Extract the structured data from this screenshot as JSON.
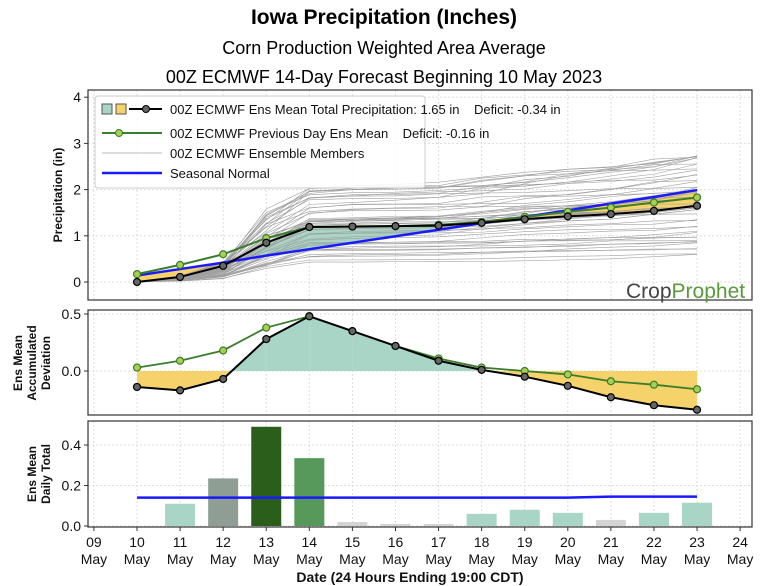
{
  "title": "Iowa Precipitation (Inches)",
  "subtitle1": "Corn Production Weighted Area Average",
  "subtitle2": "00Z ECMWF 14-Day Forecast Beginning 10 May 2023",
  "logo": {
    "part1": "Crop",
    "part2": "Prophet"
  },
  "colors": {
    "surplus": "#a8d5c5",
    "deficit": "#f5d36a",
    "mean": "#000000",
    "previous": "#3a7d2c",
    "previous_marker": "#a8cf4f",
    "members": "#a0a0a0",
    "normal": "#1a1aff"
  },
  "chart_data": [
    {
      "type": "line",
      "ylabel": "Precipitation (in)",
      "ylim": [
        -0.3,
        4
      ],
      "yticks": [
        "0",
        "1",
        "2",
        "3",
        "4"
      ],
      "grid": true,
      "legend_placement": "top-left",
      "legend": [
        "00Z ECMWF Ens Mean Total Precipitation: 1.65 in    Deficit: -0.34 in",
        "00Z ECMWF Previous Day Ens Mean    Deficit: -0.16 in",
        "00Z ECMWF Ensemble Members",
        "Seasonal Normal"
      ],
      "x": [
        10,
        11,
        12,
        13,
        14,
        15,
        16,
        17,
        18,
        19,
        20,
        21,
        22,
        23
      ],
      "series": [
        {
          "name": "00Z ECMWF Ens Mean Total Precipitation",
          "values": [
            0.0,
            0.11,
            0.35,
            0.85,
            1.19,
            1.2,
            1.21,
            1.22,
            1.28,
            1.36,
            1.42,
            1.47,
            1.54,
            1.65
          ]
        },
        {
          "name": "00Z ECMWF Previous Day Ens Mean",
          "values": [
            0.17,
            0.37,
            0.6,
            0.95,
            1.19,
            1.2,
            1.21,
            1.24,
            1.3,
            1.41,
            1.52,
            1.61,
            1.72,
            1.83
          ]
        },
        {
          "name": "Seasonal Normal",
          "values": [
            0.14,
            0.28,
            0.42,
            0.57,
            0.71,
            0.85,
            0.99,
            1.13,
            1.27,
            1.41,
            1.55,
            1.7,
            1.84,
            1.99
          ]
        }
      ]
    },
    {
      "type": "line",
      "ylabel": [
        "Ens Mean",
        "Accumulated",
        "Deviation"
      ],
      "ylim": [
        -0.38,
        0.52
      ],
      "yticks": [
        "0.0",
        "0.5"
      ],
      "grid": true,
      "x": [
        10,
        11,
        12,
        13,
        14,
        15,
        16,
        17,
        18,
        19,
        20,
        21,
        22,
        23
      ],
      "series": [
        {
          "name": "mean",
          "values": [
            -0.14,
            -0.17,
            -0.07,
            0.28,
            0.48,
            0.35,
            0.22,
            0.09,
            0.01,
            -0.05,
            -0.13,
            -0.23,
            -0.3,
            -0.34
          ]
        },
        {
          "name": "previous",
          "values": [
            0.03,
            0.09,
            0.18,
            0.38,
            0.48,
            0.35,
            0.22,
            0.11,
            0.03,
            0.0,
            -0.03,
            -0.09,
            -0.12,
            -0.16
          ]
        }
      ]
    },
    {
      "type": "bar",
      "ylabel": [
        "Ens Mean",
        "Daily Total"
      ],
      "ylim": [
        0,
        0.52
      ],
      "yticks": [
        "0.0",
        "0.2",
        "0.4"
      ],
      "grid": true,
      "x": [
        10,
        11,
        12,
        13,
        14,
        15,
        16,
        17,
        18,
        19,
        20,
        21,
        22,
        23
      ],
      "values": [
        0.0,
        0.11,
        0.235,
        0.49,
        0.335,
        0.02,
        0.01,
        0.01,
        0.06,
        0.08,
        0.065,
        0.03,
        0.065,
        0.115
      ],
      "bar_colors": [
        "#a8d5c5",
        "#a8d5c5",
        "#8f9e94",
        "#2a5e1a",
        "#56995a",
        "#d4d4d4",
        "#d4d4d4",
        "#d4d4d4",
        "#a8d5c5",
        "#a8d5c5",
        "#a8d5c5",
        "#d4d4d4",
        "#a8d5c5",
        "#a8d5c5"
      ],
      "normal": [
        0.14,
        0.14,
        0.14,
        0.14,
        0.14,
        0.14,
        0.14,
        0.14,
        0.14,
        0.14,
        0.14,
        0.145,
        0.145,
        0.145
      ],
      "xlabel": "Date (24 Hours Ending 19:00 CDT)",
      "xticks": [
        [
          "09",
          "May"
        ],
        [
          "10",
          "May"
        ],
        [
          "11",
          "May"
        ],
        [
          "12",
          "May"
        ],
        [
          "13",
          "May"
        ],
        [
          "14",
          "May"
        ],
        [
          "15",
          "May"
        ],
        [
          "16",
          "May"
        ],
        [
          "17",
          "May"
        ],
        [
          "18",
          "May"
        ],
        [
          "19",
          "May"
        ],
        [
          "20",
          "May"
        ],
        [
          "21",
          "May"
        ],
        [
          "22",
          "May"
        ],
        [
          "23",
          "May"
        ],
        [
          "24",
          "May"
        ]
      ]
    }
  ]
}
